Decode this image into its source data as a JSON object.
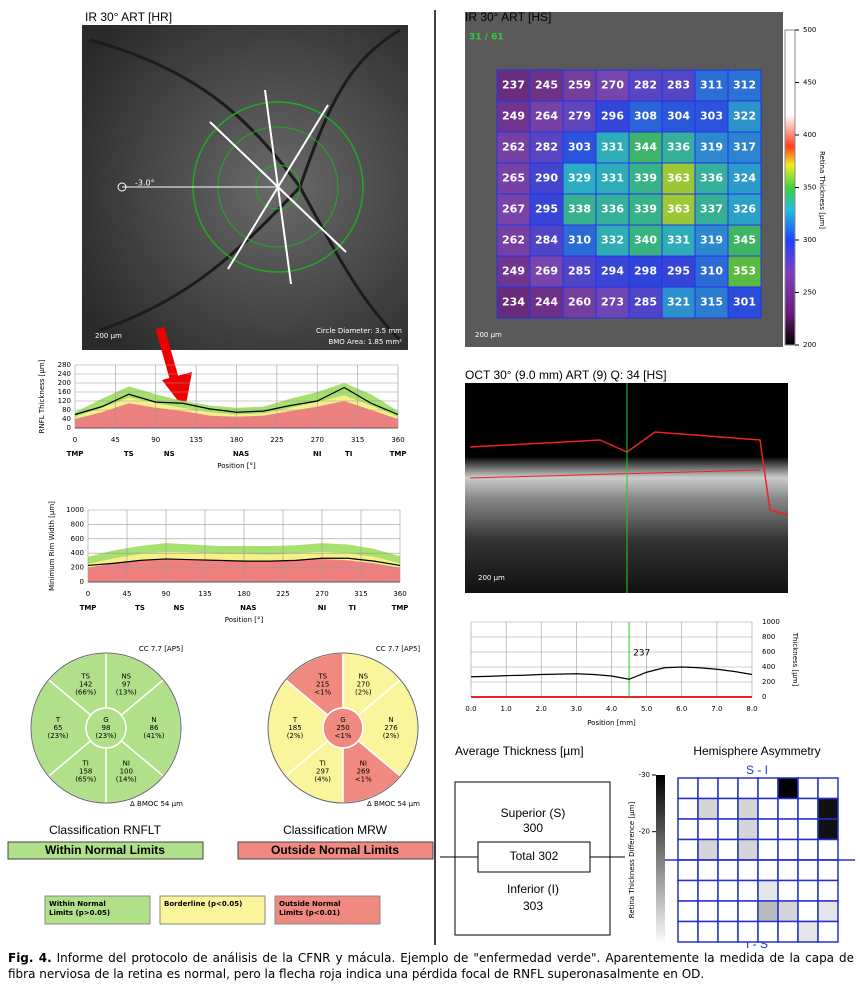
{
  "left_fundus": {
    "title": "IR 30° ART [HR]",
    "angle": "-3.0°",
    "scale": "200 µm",
    "circle_diameter": "Circle Diameter: 3.5 mm",
    "bmo_area": "BMO Area: 1.85 mm²"
  },
  "chart_data": [
    {
      "type": "line",
      "ylabel": "RNFL Thickness [µm]",
      "xlabel": "Position [°]",
      "x": [
        0,
        30,
        60,
        90,
        120,
        150,
        180,
        210,
        240,
        270,
        300,
        330,
        360
      ],
      "areas": [
        {
          "color": "#a8e070",
          "values": [
            70,
            130,
            185,
            150,
            120,
            100,
            90,
            95,
            130,
            160,
            200,
            150,
            75
          ]
        },
        {
          "color": "#f5f08a",
          "values": [
            50,
            90,
            135,
            110,
            90,
            70,
            60,
            65,
            90,
            115,
            145,
            100,
            50
          ]
        },
        {
          "color": "#f08080",
          "values": [
            40,
            70,
            110,
            90,
            75,
            55,
            50,
            55,
            75,
            95,
            120,
            80,
            40
          ]
        }
      ],
      "series": [
        {
          "color": "#000000",
          "values": [
            60,
            95,
            150,
            115,
            110,
            85,
            70,
            75,
            100,
            120,
            180,
            110,
            60
          ]
        }
      ],
      "xlim": [
        0,
        360
      ],
      "ylim": [
        0,
        280
      ],
      "xticks": [
        0,
        45,
        90,
        135,
        180,
        225,
        270,
        315,
        360
      ],
      "yticks": [
        0,
        40,
        80,
        120,
        160,
        200,
        240,
        280
      ],
      "grid": true,
      "sector_ticks": [
        {
          "value": 0,
          "label": "TMP"
        },
        {
          "value": 60,
          "label": "TS"
        },
        {
          "value": 105,
          "label": "NS"
        },
        {
          "value": 185,
          "label": "NAS"
        },
        {
          "value": 270,
          "label": "NI"
        },
        {
          "value": 305,
          "label": "TI"
        },
        {
          "value": 360,
          "label": "TMP"
        }
      ]
    },
    {
      "type": "line",
      "ylabel": "Minimum Rim Width [µm]",
      "xlabel": "Position [°]",
      "x": [
        0,
        30,
        60,
        90,
        120,
        150,
        180,
        210,
        240,
        270,
        300,
        330,
        360
      ],
      "areas": [
        {
          "color": "#a8e070",
          "values": [
            350,
            440,
            500,
            540,
            520,
            500,
            500,
            500,
            510,
            540,
            520,
            460,
            360
          ]
        },
        {
          "color": "#f5f08a",
          "values": [
            250,
            330,
            390,
            420,
            410,
            390,
            390,
            380,
            400,
            420,
            400,
            350,
            260
          ]
        },
        {
          "color": "#f08080",
          "values": [
            200,
            260,
            300,
            320,
            310,
            300,
            300,
            290,
            300,
            320,
            300,
            260,
            200
          ]
        }
      ],
      "series": [
        {
          "color": "#000000",
          "values": [
            230,
            260,
            300,
            320,
            310,
            300,
            290,
            290,
            300,
            330,
            330,
            290,
            230
          ]
        }
      ],
      "xlim": [
        0,
        360
      ],
      "ylim": [
        0,
        1000
      ],
      "xticks": [
        0,
        45,
        90,
        135,
        180,
        225,
        270,
        315,
        360
      ],
      "yticks": [
        0,
        200,
        400,
        600,
        800,
        1000
      ],
      "grid": true,
      "sector_ticks": [
        {
          "value": 0,
          "label": "TMP"
        },
        {
          "value": 60,
          "label": "TS"
        },
        {
          "value": 105,
          "label": "NS"
        },
        {
          "value": 185,
          "label": "NAS"
        },
        {
          "value": 270,
          "label": "NI"
        },
        {
          "value": 305,
          "label": "TI"
        },
        {
          "value": 360,
          "label": "TMP"
        }
      ]
    },
    {
      "type": "line",
      "ylabel": "Thickness [µm]",
      "xlabel": "Position [mm]",
      "x": [
        0,
        0.5,
        1,
        1.5,
        2,
        2.5,
        3,
        3.5,
        4,
        4.5,
        5,
        5.5,
        6,
        6.5,
        7,
        7.5,
        8
      ],
      "series": [
        {
          "color": "#000000",
          "values": [
            270,
            275,
            285,
            290,
            300,
            305,
            310,
            300,
            280,
            237,
            330,
            390,
            400,
            390,
            370,
            340,
            300
          ]
        }
      ],
      "xlim": [
        0,
        8
      ],
      "ylim": [
        0,
        1000
      ],
      "xticks": [
        {
          "value": 0,
          "label": "0.0"
        },
        {
          "value": 1,
          "label": "1.0"
        },
        {
          "value": 2,
          "label": "2.0"
        },
        {
          "value": 3,
          "label": "3.0"
        },
        {
          "value": 4,
          "label": "4.0"
        },
        {
          "value": 5,
          "label": "5.0"
        },
        {
          "value": 6,
          "label": "6.0"
        },
        {
          "value": 7,
          "label": "7.0"
        },
        {
          "value": 8,
          "label": "8.0"
        }
      ],
      "yticks": [
        0,
        200,
        400,
        600,
        800,
        1000
      ],
      "grid": true,
      "y_axis": "right",
      "cursor": {
        "x": 4.5,
        "value": 237,
        "color": "#22cc22"
      }
    }
  ],
  "sector_charts": [
    {
      "label": "CC 7.7 [AP5]",
      "bmoc": "Δ BMOC 54 µm",
      "sectors": [
        {
          "name": "TS",
          "value": 142,
          "pct": "(66%)",
          "color": "#b0e08a"
        },
        {
          "name": "NS",
          "value": 97,
          "pct": "(13%)",
          "color": "#b0e08a"
        },
        {
          "name": "T",
          "value": 65,
          "pct": "(23%)",
          "color": "#b0e08a"
        },
        {
          "name": "G",
          "value": 98,
          "pct": "(23%)",
          "color": "#b0e08a"
        },
        {
          "name": "N",
          "value": 86,
          "pct": "(41%)",
          "color": "#b0e08a"
        },
        {
          "name": "TI",
          "value": 158,
          "pct": "(65%)",
          "color": "#b0e08a"
        },
        {
          "name": "NI",
          "value": 100,
          "pct": "(14%)",
          "color": "#b0e08a"
        }
      ]
    },
    {
      "label": "CC 7.7 [AP5]",
      "bmoc": "Δ BMOC 54 µm",
      "sectors": [
        {
          "name": "TS",
          "value": 215,
          "pct": "<1%",
          "color": "#f08a80"
        },
        {
          "name": "NS",
          "value": 270,
          "pct": "(2%)",
          "color": "#faf59a"
        },
        {
          "name": "T",
          "value": 185,
          "pct": "(2%)",
          "color": "#faf59a"
        },
        {
          "name": "G",
          "value": 250,
          "pct": "<1%",
          "color": "#f08a80"
        },
        {
          "name": "N",
          "value": 276,
          "pct": "(2%)",
          "color": "#faf59a"
        },
        {
          "name": "TI",
          "value": 297,
          "pct": "(4%)",
          "color": "#faf59a"
        },
        {
          "name": "NI",
          "value": 269,
          "pct": "<1%",
          "color": "#f08a80"
        }
      ]
    }
  ],
  "classification": [
    {
      "title": "Classification RNFLT",
      "result": "Within Normal Limits",
      "color": "#b0e08a"
    },
    {
      "title": "Classification MRW",
      "result": "Outside Normal Limits",
      "color": "#f08a80"
    }
  ],
  "legend": [
    {
      "lines": [
        "Within Normal",
        "Limits (p>0.05)"
      ],
      "color": "#b0e08a"
    },
    {
      "lines": [
        "Borderline (p<0.05)"
      ],
      "color": "#faf59a"
    },
    {
      "lines": [
        "Outside Normal",
        "Limits (p<0.01)"
      ],
      "color": "#f08a80"
    }
  ],
  "macula_map": {
    "title": "IR 30° ART [HS]",
    "scans": "31 / 61",
    "scale": "200 µm",
    "values": [
      [
        237,
        245,
        259,
        270,
        282,
        283,
        311,
        312
      ],
      [
        249,
        264,
        279,
        296,
        308,
        304,
        303,
        322
      ],
      [
        262,
        282,
        303,
        331,
        344,
        336,
        319,
        317
      ],
      [
        265,
        290,
        329,
        331,
        339,
        363,
        336,
        324
      ],
      [
        267,
        295,
        338,
        336,
        339,
        363,
        337,
        326
      ],
      [
        262,
        284,
        310,
        332,
        340,
        331,
        319,
        345
      ],
      [
        249,
        269,
        285,
        294,
        298,
        295,
        310,
        353
      ],
      [
        234,
        244,
        260,
        273,
        285,
        321,
        315,
        301
      ]
    ],
    "colorbar": {
      "label": "Retina Thickness [µm]",
      "lim": [
        200,
        500
      ],
      "ticks": [
        200,
        250,
        300,
        350,
        400,
        450,
        500
      ]
    }
  },
  "oct": {
    "title": "OCT 30° (9.0 mm) ART (9) Q: 34 [HS]",
    "scale": "200 µm"
  },
  "average_thickness": {
    "title": "Average Thickness [µm]",
    "superior": {
      "label": "Superior (S)",
      "value": 300
    },
    "total": {
      "label": "Total",
      "value": 302
    },
    "inferior": {
      "label": "Inferior (I)",
      "value": 303
    }
  },
  "hemisphere_asymmetry": {
    "title": "Hemisphere Asymmetry",
    "top_label": "S - I",
    "bottom_label": "I - S",
    "values": [
      [
        0,
        0,
        0,
        0,
        0,
        -30,
        0,
        0
      ],
      [
        0,
        -5,
        0,
        -5,
        0,
        0,
        0,
        -28
      ],
      [
        0,
        0,
        0,
        -5,
        0,
        0,
        0,
        -28
      ],
      [
        0,
        -5,
        0,
        -5,
        0,
        0,
        0,
        0
      ],
      [
        0,
        0,
        0,
        0,
        0,
        0,
        0,
        0
      ],
      [
        0,
        0,
        0,
        0,
        -3,
        0,
        0,
        0
      ],
      [
        0,
        0,
        0,
        0,
        -8,
        -5,
        0,
        -3
      ],
      [
        0,
        0,
        0,
        0,
        0,
        0,
        -3,
        0
      ]
    ],
    "colorbar": {
      "label": "Retina Thickness Difference [µm]",
      "lim": [
        -30,
        0
      ],
      "ticks": [
        -30,
        -20
      ]
    }
  },
  "caption": {
    "label": "Fig. 4.",
    "text": "Informe del protocolo de análisis de la CFNR y mácula. Ejemplo de \"enfermedad verde\". Aparentemente la medida de la capa de fibra nerviosa de la retina es normal, pero la flecha roja indica una pérdida focal de RNFL superonasalmente en OD."
  }
}
